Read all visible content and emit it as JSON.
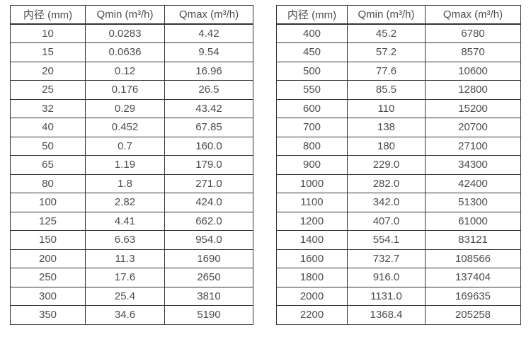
{
  "page": {
    "background": "#ffffff",
    "text_color": "#4d4d4d",
    "border_color": "#333333"
  },
  "tables": [
    {
      "name": "small-diameter-flow-table",
      "headers": [
        "内径 (mm)",
        "Qmin (m³/h)",
        "Qmax (m³/h)"
      ],
      "rows": [
        [
          "10",
          "0.0283",
          "4.42"
        ],
        [
          "15",
          "0.0636",
          "9.54"
        ],
        [
          "20",
          "0.12",
          "16.96"
        ],
        [
          "25",
          "0.176",
          "26.5"
        ],
        [
          "32",
          "0.29",
          "43.42"
        ],
        [
          "40",
          "0.452",
          "67.85"
        ],
        [
          "50",
          "0.7",
          "160.0"
        ],
        [
          "65",
          "1.19",
          "179.0"
        ],
        [
          "80",
          "1.8",
          "271.0"
        ],
        [
          "100",
          "2.82",
          "424.0"
        ],
        [
          "125",
          "4.41",
          "662.0"
        ],
        [
          "150",
          "6.63",
          "954.0"
        ],
        [
          "200",
          "11.3",
          "1690"
        ],
        [
          "250",
          "17.6",
          "2650"
        ],
        [
          "300",
          "25.4",
          "3810"
        ],
        [
          "350",
          "34.6",
          "5190"
        ]
      ]
    },
    {
      "name": "large-diameter-flow-table",
      "headers": [
        "内径 (mm)",
        "Qmin (m³/h)",
        "Qmax (m³/h)"
      ],
      "rows": [
        [
          "400",
          "45.2",
          "6780"
        ],
        [
          "450",
          "57.2",
          "8570"
        ],
        [
          "500",
          "77.6",
          "10600"
        ],
        [
          "550",
          "85.5",
          "12800"
        ],
        [
          "600",
          "110",
          "15200"
        ],
        [
          "700",
          "138",
          "20700"
        ],
        [
          "800",
          "180",
          "27100"
        ],
        [
          "900",
          "229.0",
          "34300"
        ],
        [
          "1000",
          "282.0",
          "42400"
        ],
        [
          "1100",
          "342.0",
          "51300"
        ],
        [
          "1200",
          "407.0",
          "61000"
        ],
        [
          "1400",
          "554.1",
          "83121"
        ],
        [
          "1600",
          "732.7",
          "108566"
        ],
        [
          "1800",
          "916.0",
          "137404"
        ],
        [
          "2000",
          "1131.0",
          "169635"
        ],
        [
          "2200",
          "1368.4",
          "205258"
        ]
      ]
    }
  ]
}
